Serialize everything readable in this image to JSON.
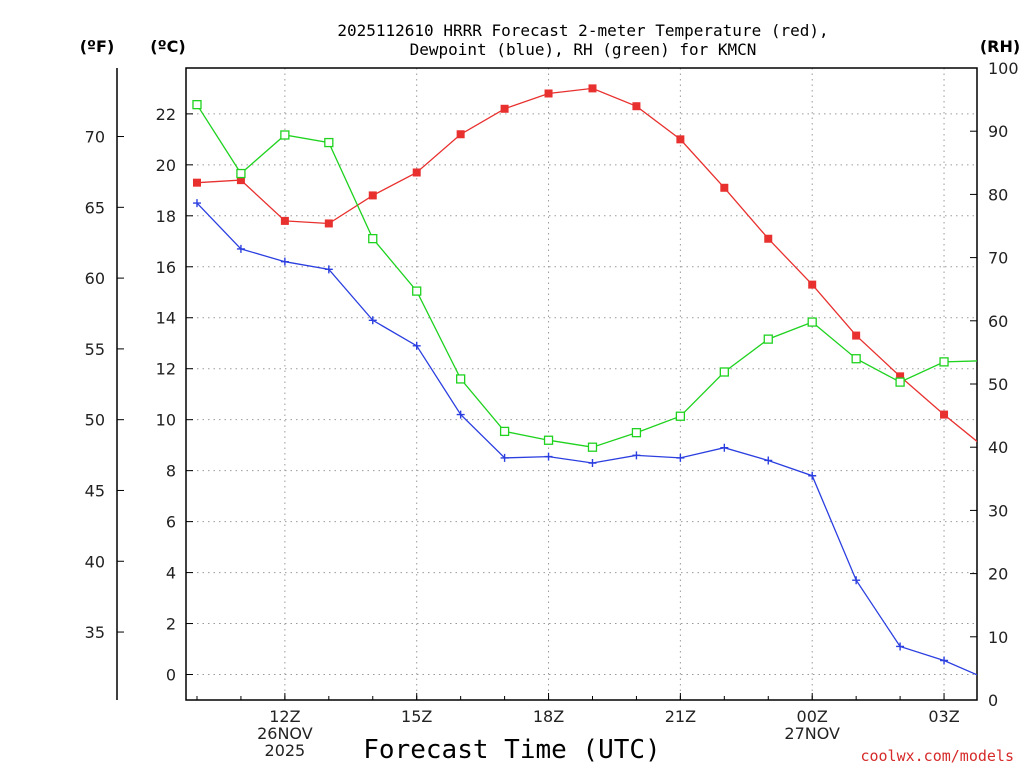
{
  "chart_data": {
    "type": "line",
    "title_lines": [
      "2025112610 HRRR Forecast 2-meter Temperature (red),",
      "Dewpoint (blue), RH (green) for KMCN"
    ],
    "xlabel": "Forecast Time (UTC)",
    "credit": "coolwx.com/models",
    "x_range_hours": [
      9.75,
      27.75
    ],
    "x_ticks": [
      {
        "hour": 12,
        "lines": [
          "12Z",
          "26NOV",
          "2025"
        ]
      },
      {
        "hour": 15,
        "lines": [
          "15Z"
        ]
      },
      {
        "hour": 18,
        "lines": [
          "18Z"
        ]
      },
      {
        "hour": 21,
        "lines": [
          "21Z"
        ]
      },
      {
        "hour": 24,
        "lines": [
          "00Z",
          "27NOV"
        ]
      },
      {
        "hour": 27,
        "lines": [
          "03Z"
        ]
      }
    ],
    "axes": {
      "celsius": {
        "unit_label": "(ºC)",
        "range": [
          -1,
          23.8
        ],
        "ticks": [
          0,
          2,
          4,
          6,
          8,
          10,
          12,
          14,
          16,
          18,
          20,
          22
        ]
      },
      "fahrenheit": {
        "unit_label": "(ºF)",
        "ticks": [
          35,
          40,
          45,
          50,
          55,
          60,
          65,
          70
        ]
      },
      "rh": {
        "unit_label": "(RH)",
        "range": [
          0,
          100
        ],
        "ticks": [
          0,
          10,
          20,
          30,
          40,
          50,
          60,
          70,
          80,
          90,
          100
        ]
      }
    },
    "series": [
      {
        "name": "Temperature",
        "axis": "celsius",
        "color": "#e8302e",
        "marker": "filled-square",
        "x": [
          10,
          11,
          12,
          13,
          14,
          15,
          16,
          17,
          18,
          19,
          20,
          21,
          22,
          23,
          24,
          25,
          26,
          27,
          28
        ],
        "values": [
          19.3,
          19.4,
          17.8,
          17.7,
          18.8,
          19.7,
          21.2,
          22.2,
          22.8,
          23.0,
          22.3,
          21.0,
          19.1,
          17.1,
          15.3,
          13.3,
          11.7,
          10.2,
          8.8
        ]
      },
      {
        "name": "Dewpoint",
        "axis": "celsius",
        "color": "#2b3fe0",
        "marker": "plus",
        "x": [
          10,
          11,
          12,
          13,
          14,
          15,
          16,
          17,
          18,
          19,
          20,
          21,
          22,
          23,
          24,
          25,
          26,
          27,
          28
        ],
        "values": [
          18.5,
          16.7,
          16.2,
          15.9,
          13.9,
          12.9,
          10.2,
          8.5,
          8.55,
          8.3,
          8.6,
          8.5,
          8.9,
          8.4,
          7.8,
          3.7,
          1.1,
          0.55,
          -0.2
        ]
      },
      {
        "name": "RH",
        "axis": "rh",
        "color": "#1ed21e",
        "marker": "open-square",
        "x": [
          10,
          11,
          12,
          13,
          14,
          15,
          16,
          17,
          18,
          19,
          20,
          21,
          22,
          23,
          24,
          25,
          26,
          27,
          28
        ],
        "values": [
          94.2,
          83.3,
          89.4,
          88.2,
          73.0,
          64.7,
          50.8,
          42.5,
          41.1,
          40.0,
          42.3,
          44.9,
          51.9,
          57.1,
          59.8,
          54.0,
          50.3,
          53.5,
          53.7
        ]
      }
    ]
  }
}
